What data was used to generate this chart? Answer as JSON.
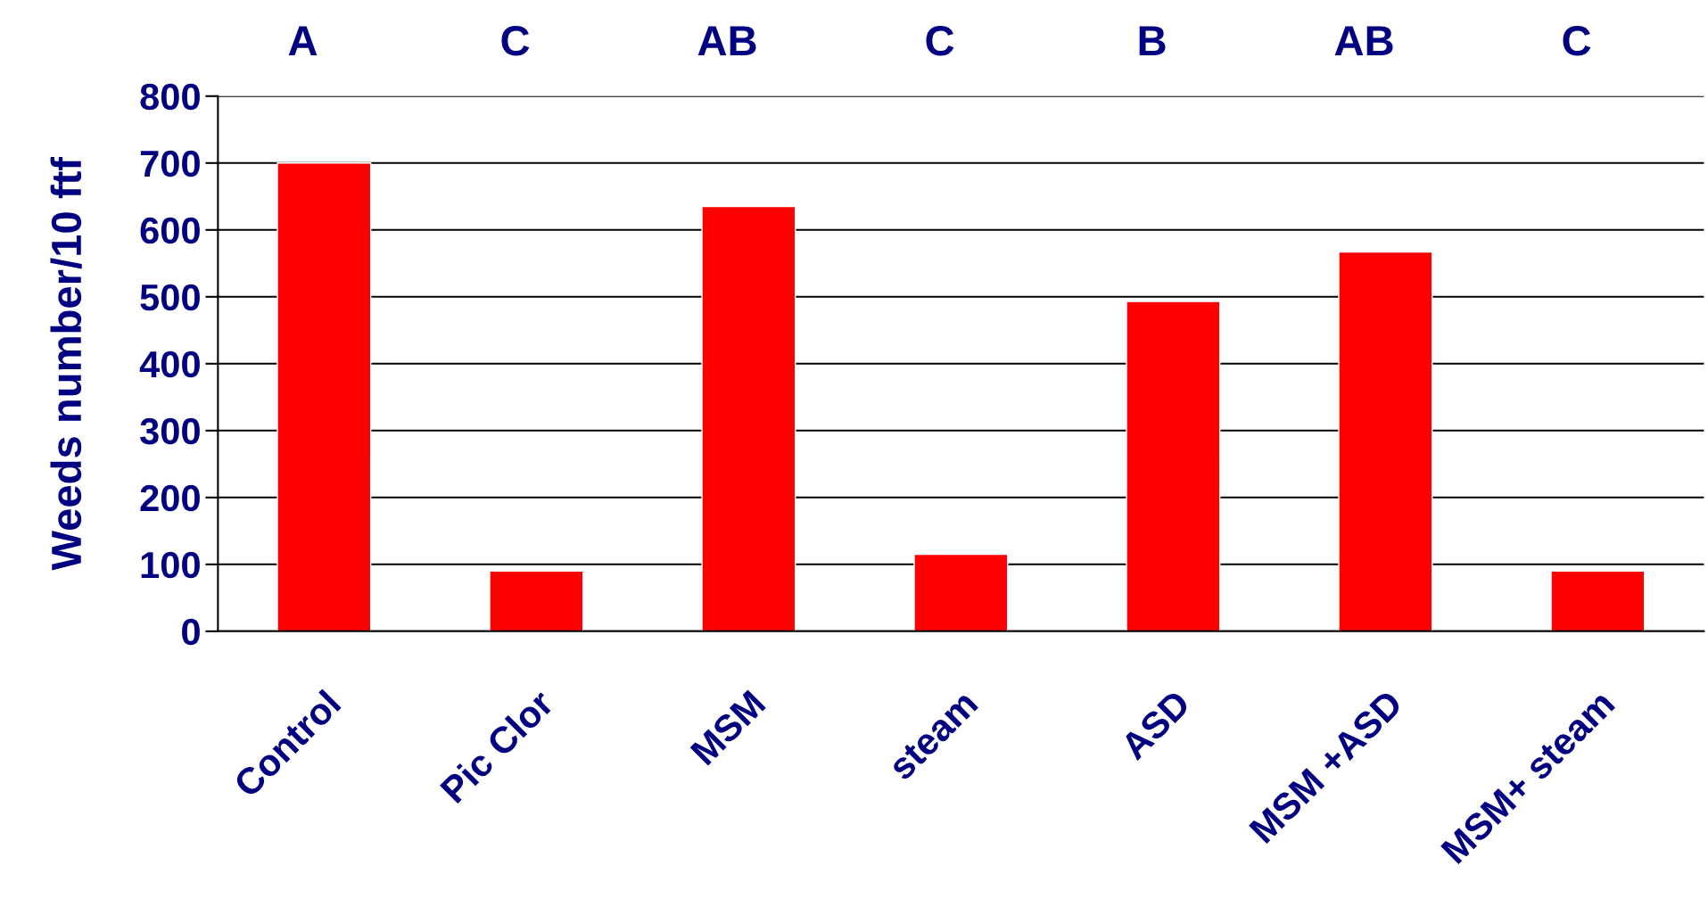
{
  "chart_data": {
    "type": "bar",
    "ylabel": "Weeds number/10 ftf",
    "categories": [
      "Control",
      "Pic Clor",
      "MSM",
      "steam",
      "ASD",
      "MSM +ASD",
      "MSM+ steam"
    ],
    "values": [
      700,
      90,
      635,
      115,
      493,
      567,
      90
    ],
    "color": "#ff0000",
    "ylim": [
      0,
      800
    ],
    "yticks": [
      0,
      100,
      200,
      300,
      400,
      500,
      600,
      700,
      800
    ],
    "grid": "y",
    "annotations": [
      "A",
      "C",
      "AB",
      "C",
      "B",
      "AB",
      "C"
    ]
  }
}
